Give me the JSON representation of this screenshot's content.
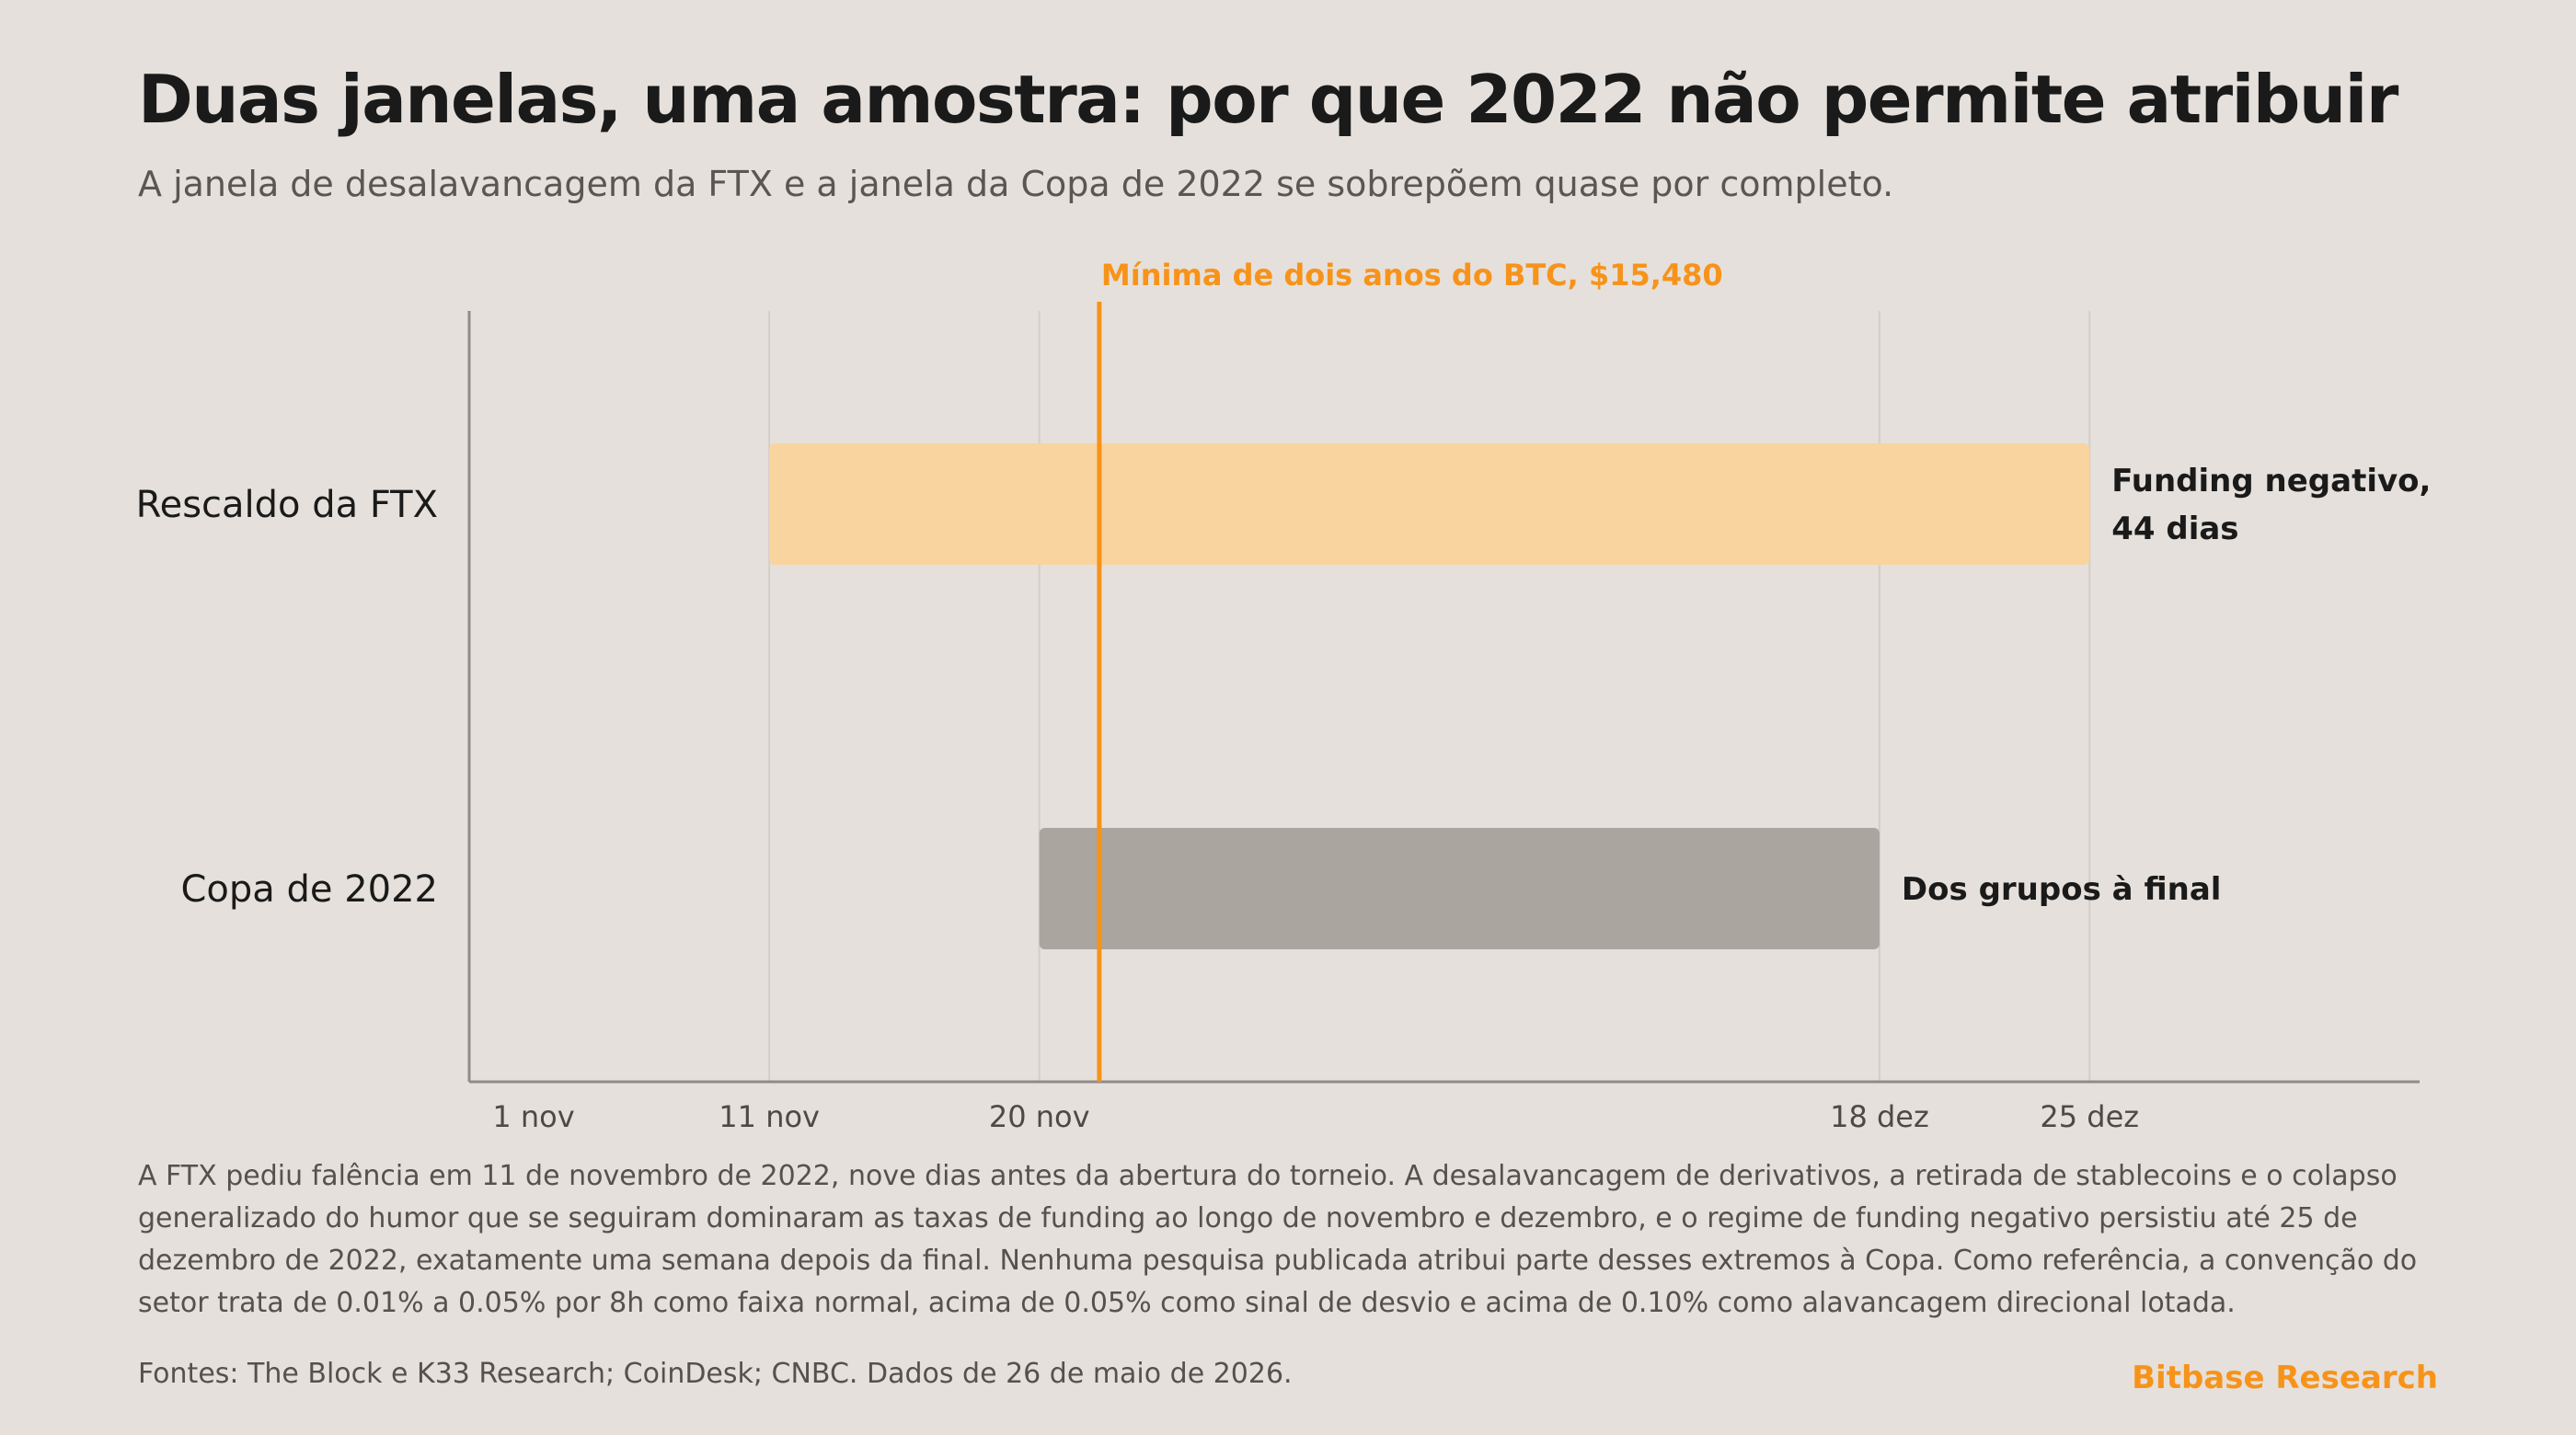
{
  "header": {
    "title": "Duas janelas, uma amostra: por que 2022 não permite atribuir",
    "subtitle": "A janela de desalavancagem da FTX e a janela da Copa de 2022 se sobrepõem quase por completo."
  },
  "chart_data": {
    "type": "timeline",
    "x_axis": {
      "ticks": [
        {
          "date": "2022-11-01",
          "label": "1 nov"
        },
        {
          "date": "2022-11-11",
          "label": "11 nov"
        },
        {
          "date": "2022-11-20",
          "label": "20 nov"
        },
        {
          "date": "2022-12-18",
          "label": "18 dez"
        },
        {
          "date": "2022-12-25",
          "label": "25 dez"
        }
      ],
      "xlim": [
        "2022-11-01",
        "2023-01-05"
      ]
    },
    "gridlines": true,
    "bars": [
      {
        "category": "Rescaldo da FTX",
        "start": "2022-11-11",
        "end": "2022-12-25",
        "annotation": [
          "Funding negativo,",
          "44 dias"
        ],
        "color": "#f9d49e"
      },
      {
        "category": "Copa de 2022",
        "start": "2022-11-20",
        "end": "2022-12-18",
        "annotation": [
          "Dos grupos à final"
        ],
        "color": "#aaa59f"
      }
    ],
    "marker": {
      "date": "2022-11-22",
      "label": "Mínima de dois anos do BTC, $15,480",
      "color": "#f7931a"
    },
    "colors": {
      "axis": "#8f8b86",
      "grid": "#d3cec8",
      "tick_text": "#4d4a46",
      "category_text": "#1a1a1a"
    }
  },
  "footer": {
    "body": "A FTX pediu falência em 11 de novembro de 2022, nove dias antes da abertura do torneio. A desalavancagem de derivativos, a retirada de stablecoins e o colapso generalizado do humor que se seguiram dominaram as taxas de funding ao longo de novembro e dezembro, e o regime de funding negativo persistiu até 25 de dezembro de 2022, exatamente uma semana depois da final. Nenhuma pesquisa publicada atribui parte desses extremos à Copa. Como referência, a convenção do setor trata de 0.01% a 0.05% por 8h como faixa normal, acima de 0.05% como sinal de desvio e acima de 0.10% como alavancagem direcional lotada.",
    "sources": "Fontes: The Block e K33 Research; CoinDesk; CNBC. Dados de 26 de maio de 2026.",
    "brand": "Bitbase Research"
  }
}
